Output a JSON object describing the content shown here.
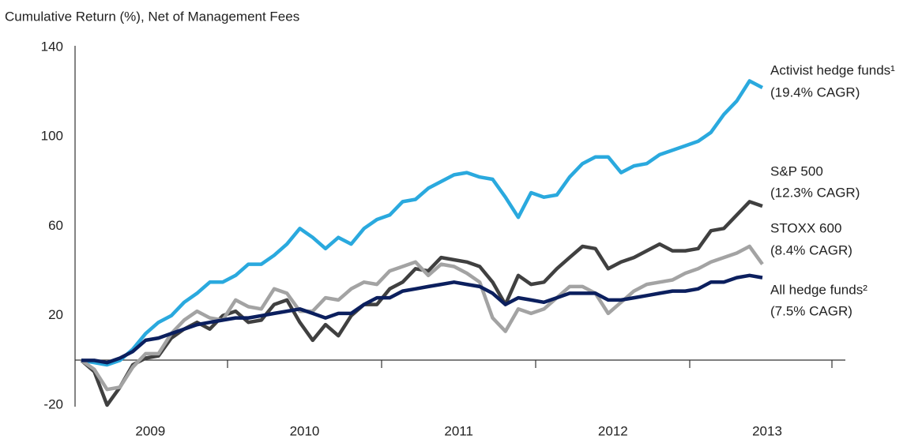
{
  "chart_data": {
    "type": "line",
    "title": "Cumulative Return (%), Net of Management Fees",
    "categories": [
      null,
      null,
      null,
      null,
      null,
      "2009",
      null,
      null,
      null,
      null,
      null,
      null,
      null,
      null,
      null,
      null,
      null,
      "2010",
      null,
      null,
      null,
      null,
      null,
      null,
      null,
      null,
      null,
      null,
      null,
      "2011",
      null,
      null,
      null,
      null,
      null,
      null,
      null,
      null,
      null,
      null,
      null,
      "2012",
      null,
      null,
      null,
      null,
      null,
      null,
      null,
      null,
      null,
      null,
      null,
      "2013"
    ],
    "ylim": [
      -20,
      140
    ],
    "yticks": [
      -20,
      20,
      60,
      100,
      140
    ],
    "grid": false,
    "series": [
      {
        "name": "Activist hedge funds¹",
        "note": "(19.4% CAGR)",
        "color": "#2aa9de",
        "values": [
          0,
          -1,
          -2,
          0,
          5,
          12,
          17,
          20,
          26,
          30,
          35,
          35,
          38,
          43,
          43,
          47,
          52,
          59,
          55,
          50,
          55,
          52,
          59,
          63,
          65,
          71,
          72,
          77,
          80,
          83,
          84,
          82,
          81,
          73,
          64,
          75,
          73,
          74,
          82,
          88,
          91,
          91,
          84,
          87,
          88,
          92,
          94,
          96,
          98,
          102,
          110,
          116,
          125,
          122
        ]
      },
      {
        "name": "S&P 500",
        "note": "(12.3% CAGR)",
        "color": "#404040",
        "values": [
          0,
          -5,
          -20,
          -12,
          -2,
          1,
          2,
          10,
          14,
          17,
          14,
          20,
          22,
          17,
          18,
          25,
          27,
          17,
          9,
          16,
          11,
          20,
          25,
          25,
          32,
          35,
          41,
          40,
          46,
          45,
          44,
          42,
          35,
          25,
          38,
          34,
          35,
          41,
          46,
          51,
          50,
          41,
          44,
          46,
          49,
          52,
          49,
          49,
          50,
          58,
          59,
          65,
          71,
          69
        ]
      },
      {
        "name": "STOXX 600",
        "note": "(8.4% CAGR)",
        "color": "#a3a3a3",
        "values": [
          0,
          -4,
          -13,
          -12,
          -3,
          3,
          3,
          12,
          18,
          22,
          19,
          18,
          27,
          24,
          23,
          32,
          30,
          22,
          22,
          28,
          27,
          32,
          35,
          34,
          40,
          42,
          44,
          38,
          43,
          42,
          39,
          35,
          19,
          13,
          23,
          21,
          23,
          28,
          33,
          33,
          30,
          21,
          26,
          31,
          34,
          35,
          36,
          39,
          41,
          44,
          46,
          48,
          51,
          43
        ]
      },
      {
        "name": "All hedge funds²",
        "note": "(7.5% CAGR)",
        "color": "#0b1f5e",
        "values": [
          0,
          0,
          -1,
          1,
          4,
          9,
          10,
          12,
          14,
          16,
          17,
          18,
          19,
          19,
          20,
          21,
          22,
          23,
          21,
          19,
          21,
          21,
          25,
          28,
          28,
          31,
          32,
          33,
          34,
          35,
          34,
          33,
          30,
          25,
          28,
          27,
          26,
          28,
          30,
          30,
          30,
          27,
          27,
          28,
          29,
          30,
          31,
          31,
          32,
          35,
          35,
          37,
          38,
          37
        ]
      }
    ]
  }
}
